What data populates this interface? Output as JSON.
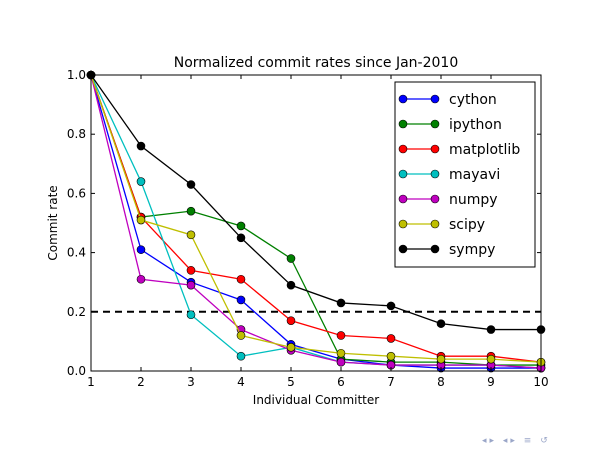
{
  "chart_data": {
    "type": "line",
    "title": "Normalized commit rates since Jan-2010",
    "xlabel": "Individual Committer",
    "ylabel": "Commit rate",
    "xlim": [
      1,
      10
    ],
    "ylim": [
      0.0,
      1.0
    ],
    "xticks": [
      "1",
      "2",
      "3",
      "4",
      "5",
      "6",
      "7",
      "8",
      "9",
      "10"
    ],
    "yticks": [
      "0.0",
      "0.2",
      "0.4",
      "0.6",
      "0.8",
      "1.0"
    ],
    "x": [
      1,
      2,
      3,
      4,
      5,
      6,
      7,
      8,
      9,
      10
    ],
    "legend_position": "top-right",
    "grid": false,
    "reference_line": {
      "y": 0.2,
      "style": "dashed",
      "color": "#000000"
    },
    "series": [
      {
        "name": "cython",
        "color": "#0000ff",
        "values": [
          1.0,
          0.41,
          0.3,
          0.24,
          0.09,
          0.04,
          0.02,
          0.01,
          0.01,
          0.01
        ]
      },
      {
        "name": "ipython",
        "color": "#008000",
        "values": [
          1.0,
          0.52,
          0.54,
          0.49,
          0.38,
          0.04,
          0.03,
          0.03,
          0.02,
          0.02
        ]
      },
      {
        "name": "matplotlib",
        "color": "#ff0000",
        "values": [
          1.0,
          0.52,
          0.34,
          0.31,
          0.17,
          0.12,
          0.11,
          0.05,
          0.05,
          0.03
        ]
      },
      {
        "name": "mayavi",
        "color": "#00bfbf",
        "values": [
          1.0,
          0.64,
          0.19,
          0.05,
          0.08,
          0.03,
          0.02,
          0.02,
          0.02,
          0.01
        ]
      },
      {
        "name": "numpy",
        "color": "#bf00bf",
        "values": [
          1.0,
          0.31,
          0.29,
          0.14,
          0.07,
          0.03,
          0.02,
          0.02,
          0.02,
          0.01
        ]
      },
      {
        "name": "scipy",
        "color": "#bfbf00",
        "values": [
          1.0,
          0.51,
          0.46,
          0.12,
          0.08,
          0.06,
          0.05,
          0.04,
          0.04,
          0.03
        ]
      },
      {
        "name": "sympy",
        "color": "#000000",
        "values": [
          1.0,
          0.76,
          0.63,
          0.45,
          0.29,
          0.23,
          0.22,
          0.16,
          0.14,
          0.14
        ]
      }
    ]
  }
}
